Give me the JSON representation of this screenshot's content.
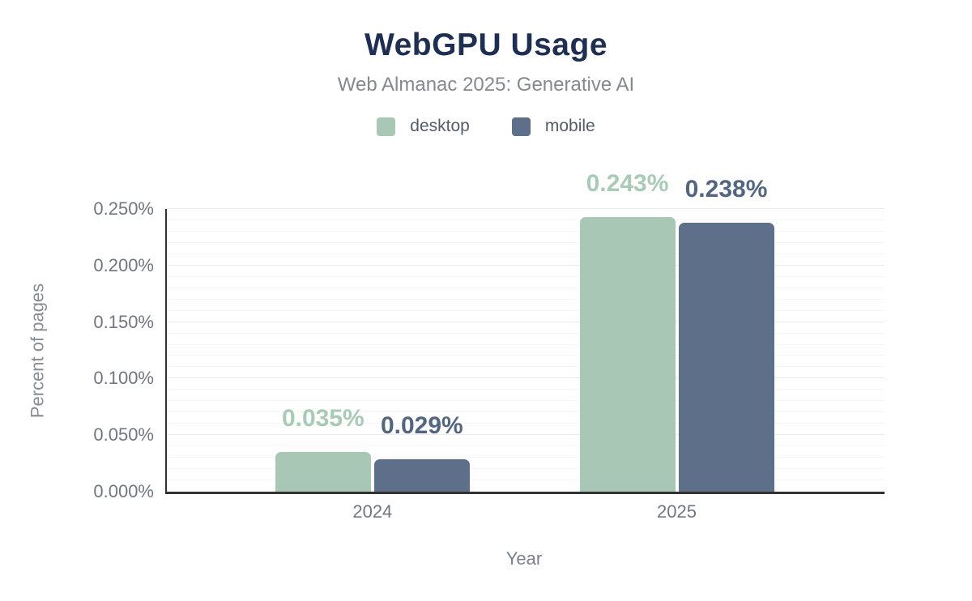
{
  "chart_data": {
    "type": "bar",
    "title": "WebGPU Usage",
    "subtitle": "Web Almanac 2025: Generative AI",
    "xlabel": "Year",
    "ylabel": "Percent of pages",
    "categories": [
      "2024",
      "2025"
    ],
    "series": [
      {
        "name": "desktop",
        "color": "#a8c7b4",
        "label_color": "#a8cab6",
        "values": [
          0.035,
          0.243
        ],
        "labels": [
          "0.035%",
          "0.243%"
        ]
      },
      {
        "name": "mobile",
        "color": "#5e7089",
        "label_color": "#54667f",
        "values": [
          0.029,
          0.238
        ],
        "labels": [
          "0.029%",
          "0.238%"
        ]
      }
    ],
    "ylim": [
      0,
      0.25
    ],
    "yticks": [
      {
        "value": 0.0,
        "label": "0.000%"
      },
      {
        "value": 0.05,
        "label": "0.050%"
      },
      {
        "value": 0.1,
        "label": "0.100%"
      },
      {
        "value": 0.15,
        "label": "0.150%"
      },
      {
        "value": 0.2,
        "label": "0.200%"
      },
      {
        "value": 0.25,
        "label": "0.250%"
      }
    ],
    "grid": {
      "minor_step": 0.01,
      "major_step": 0.05,
      "visible": true
    },
    "legend_position": "top"
  }
}
